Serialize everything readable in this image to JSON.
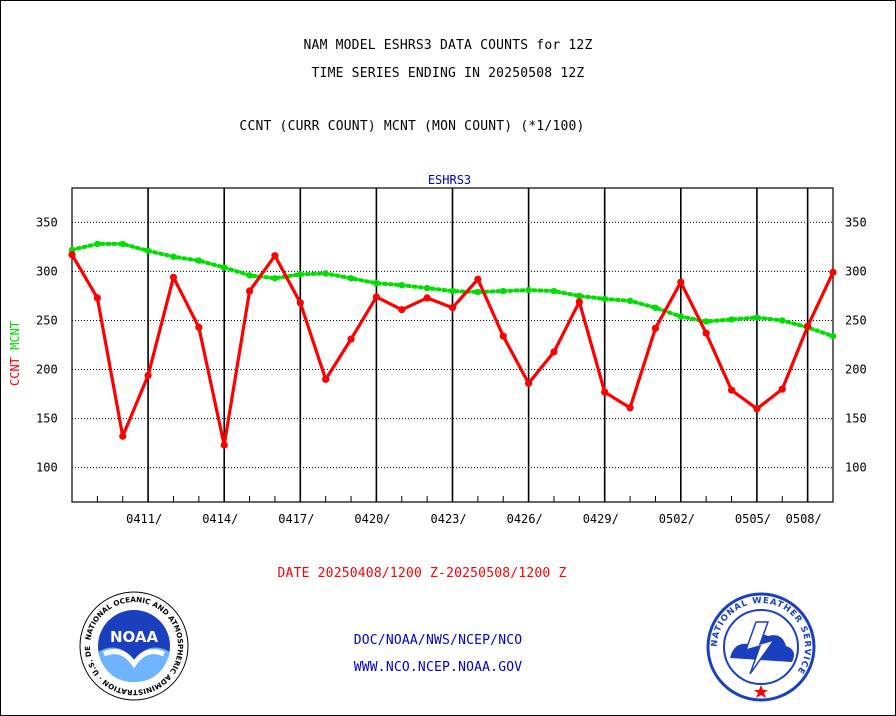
{
  "title_line1": "NAM MODEL ESHRS3 DATA COUNTS for 12Z",
  "title_line2": "TIME SERIES ENDING IN 20250508 12Z",
  "subtitle": "CCNT (CURR COUNT) MCNT (MON COUNT) (*1/100)",
  "footer": {
    "date_range": "DATE 20250408/1200 Z-20250508/1200 Z",
    "org_path": "DOC/NOAA/NWS/NCEP/NCO",
    "website": "WWW.NCO.NCEP.NOAA.GOV"
  },
  "logos": {
    "left": {
      "name": "noaa-logo",
      "text": "NOAA",
      "ring_text": "NATIONAL OCEANIC AND ATMOSPHERIC ADMINISTRATION · U.S. DEPARTMENT OF COMMERCE"
    },
    "right": {
      "name": "nws-logo",
      "ring_text": "NATIONAL WEATHER SERVICE"
    }
  },
  "colors": {
    "ccnt": "#ff0000",
    "mcnt": "#00dd00",
    "label_blue": "#0000cc",
    "date_red": "#ff0000"
  },
  "chart_data": {
    "type": "line",
    "title": "ESHRS3",
    "ylabel_parts": [
      {
        "text": "CCNT",
        "color": "#ff0000"
      },
      {
        "text": "MCNT",
        "color": "#00dd00"
      }
    ],
    "x_tick_labels": [
      "0411/",
      "0414/",
      "0417/",
      "0420/",
      "0423/",
      "0426/",
      "0429/",
      "0502/",
      "0505/",
      "0508/"
    ],
    "ylim": [
      65,
      385
    ],
    "yticks": [
      100,
      150,
      200,
      250,
      300,
      350
    ],
    "grid": true,
    "series": [
      {
        "name": "CCNT",
        "color": "#ff0000",
        "style": "solid",
        "x": [
          "0408",
          "0409",
          "0410",
          "0411",
          "0412",
          "0413",
          "0414",
          "0415",
          "0416",
          "0417",
          "0418",
          "0419",
          "0420",
          "0421",
          "0422",
          "0423",
          "0424",
          "0425",
          "0426",
          "0427",
          "0428",
          "0429",
          "0430",
          "0501",
          "0502",
          "0503",
          "0504",
          "0505",
          "0506",
          "0507",
          "0508"
        ],
        "values": [
          317,
          273,
          132,
          194,
          294,
          243,
          123,
          280,
          316,
          268,
          190,
          231,
          274,
          261,
          273,
          263,
          292,
          234,
          186,
          218,
          269,
          177,
          161,
          242,
          289,
          237,
          179,
          160,
          180,
          244,
          299
        ]
      },
      {
        "name": "MCNT",
        "color": "#00dd00",
        "style": "dotted",
        "x": [
          "0408",
          "0409",
          "0410",
          "0411",
          "0412",
          "0413",
          "0414",
          "0415",
          "0416",
          "0417",
          "0418",
          "0419",
          "0420",
          "0421",
          "0422",
          "0423",
          "0424",
          "0425",
          "0426",
          "0427",
          "0428",
          "0429",
          "0430",
          "0501",
          "0502",
          "0503",
          "0504",
          "0505",
          "0506",
          "0507",
          "0508"
        ],
        "values": [
          322,
          328,
          328,
          321,
          315,
          311,
          304,
          296,
          293,
          297,
          298,
          293,
          288,
          286,
          283,
          280,
          279,
          280,
          281,
          280,
          275,
          272,
          270,
          263,
          254,
          249,
          251,
          253,
          250,
          243,
          234
        ]
      }
    ]
  }
}
